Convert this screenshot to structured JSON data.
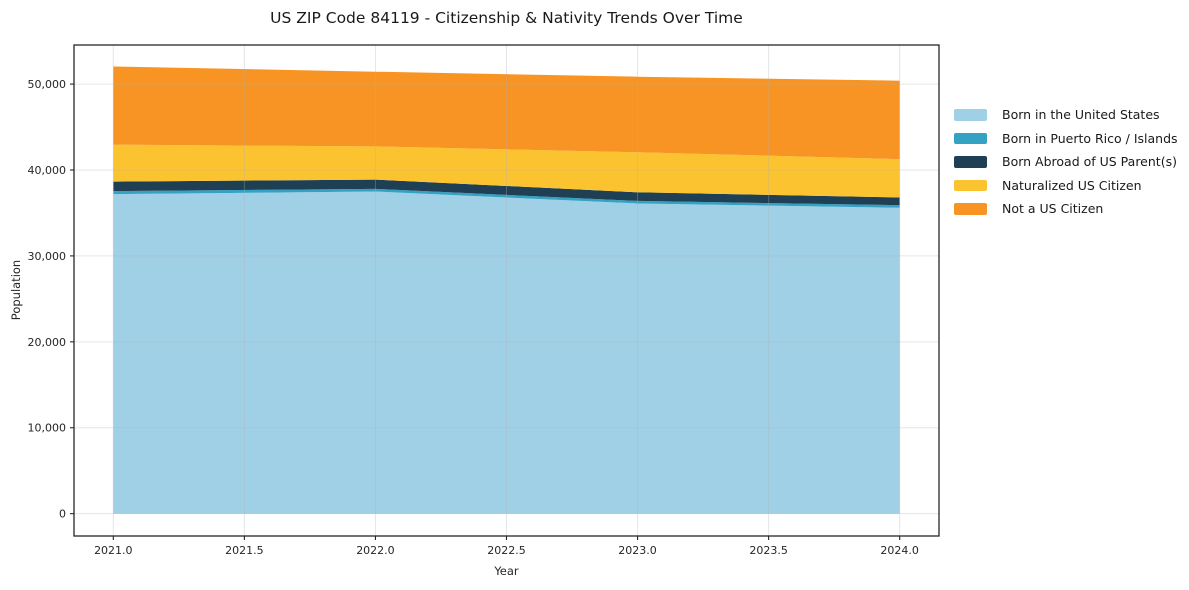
{
  "chart_data": {
    "type": "area",
    "stacked": true,
    "title": "US ZIP Code 84119 - Citizenship & Nativity Trends Over Time",
    "xlabel": "Year",
    "ylabel": "Population",
    "x": [
      2021,
      2022,
      2023,
      2024
    ],
    "series": [
      {
        "name": "Born in the United States",
        "color": "#9fd0e6",
        "values": [
          37200,
          37500,
          36100,
          35600
        ]
      },
      {
        "name": "Born in Puerto Rico / Islands",
        "color": "#35a2c4",
        "values": [
          350,
          300,
          300,
          300
        ]
      },
      {
        "name": "Born Abroad of US Parent(s)",
        "color": "#1f4054",
        "values": [
          1100,
          1080,
          1000,
          900
        ]
      },
      {
        "name": "Naturalized US Citizen",
        "color": "#fcc330",
        "values": [
          4300,
          3870,
          4660,
          4470
        ]
      },
      {
        "name": "Not a US Citizen",
        "color": "#f79423",
        "values": [
          9100,
          8690,
          8800,
          9120
        ]
      }
    ],
    "totals": [
      52050,
      51440,
      50860,
      50390
    ],
    "xlim": [
      2020.85,
      2024.15
    ],
    "ylim": [
      -2600,
      54550
    ],
    "xticks": [
      2021.0,
      2021.5,
      2022.0,
      2022.5,
      2023.0,
      2023.5,
      2024.0
    ],
    "yticks": [
      0,
      10000,
      20000,
      30000,
      40000,
      50000
    ],
    "grid": true,
    "grid_color": "#b0b0b0",
    "grid_opacity": 0.32,
    "axis_color": "#262626",
    "legend_position": "right-outside"
  }
}
